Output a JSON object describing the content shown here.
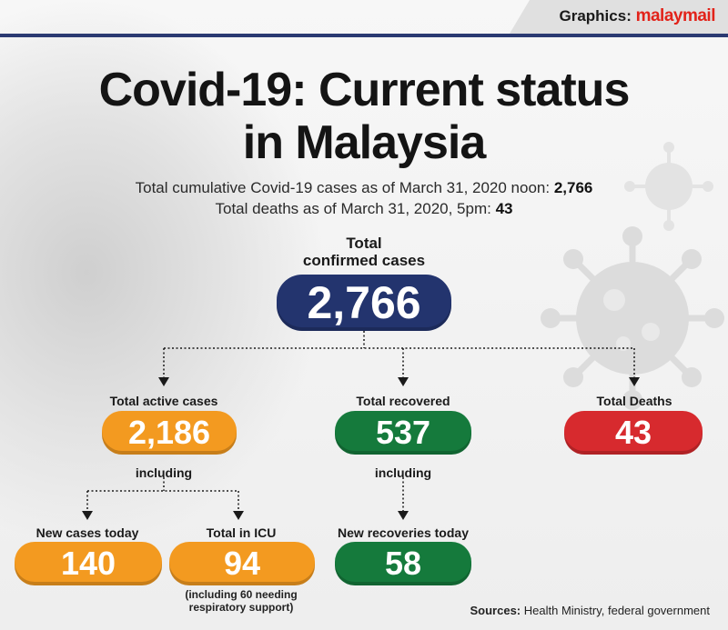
{
  "credit": {
    "prefix": "Graphics:",
    "brand": "malaymail"
  },
  "title_line1": "Covid-19: Current status",
  "title_line2": "in Malaysia",
  "sub1": {
    "text": "Total cumulative Covid-19 cases as of March 31, 2020 noon: ",
    "value": "2,766"
  },
  "sub2": {
    "text": "Total deaths as of March 31, 2020, 5pm: ",
    "value": "43"
  },
  "total": {
    "label_line1": "Total",
    "label_line2": "confirmed cases",
    "value": "2,766",
    "color": "#23346e"
  },
  "active": {
    "label": "Total active cases",
    "value": "2,186",
    "color": "#f39a20",
    "including": "including"
  },
  "recovered": {
    "label": "Total recovered",
    "value": "537",
    "color": "#157a3c",
    "including": "including"
  },
  "deaths": {
    "label": "Total Deaths",
    "value": "43",
    "color": "#d72a2e"
  },
  "new_cases": {
    "label": "New cases today",
    "value": "140"
  },
  "icu": {
    "label": "Total in ICU",
    "value": "94",
    "note_line1": "(including 60 needing",
    "note_line2": "respiratory support)"
  },
  "new_recoveries": {
    "label": "New recoveries today",
    "value": "58"
  },
  "sources": {
    "label": "Sources:",
    "text": " Health Ministry, federal government"
  }
}
